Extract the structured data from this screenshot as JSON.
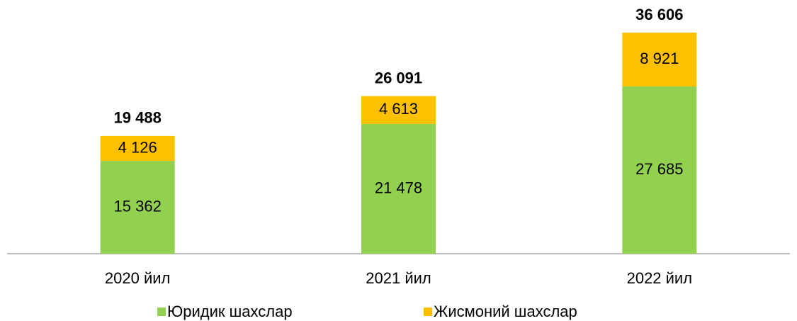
{
  "chart_data": {
    "type": "stacked_bar",
    "categories": [
      "2020 йил",
      "2021 йил",
      "2022 йил"
    ],
    "series": [
      {
        "name": "Юридик шахслар",
        "color": "#92d050",
        "values": [
          15362,
          21478,
          27685
        ],
        "value_labels": [
          "15 362",
          "21 478",
          "27 685"
        ]
      },
      {
        "name": "Жисмоний шахслар",
        "color": "#ffc000",
        "values": [
          4126,
          4613,
          8921
        ],
        "value_labels": [
          "4 126",
          "4 613",
          "8 921"
        ]
      }
    ],
    "totals": [
      19488,
      26091,
      36606
    ],
    "total_labels": [
      "19 488",
      "26 091",
      "36 606"
    ]
  }
}
